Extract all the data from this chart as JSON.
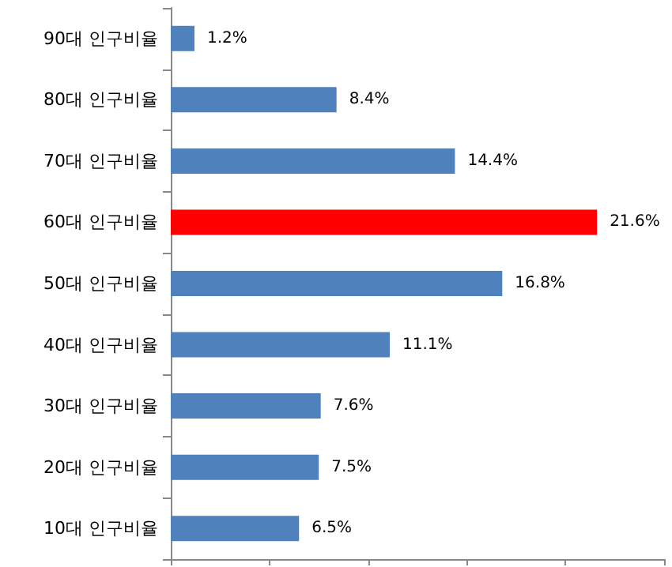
{
  "chart_data": {
    "type": "bar",
    "orientation": "horizontal",
    "categories": [
      "90대 인구비율",
      "80대 인구비율",
      "70대 인구비율",
      "60대 인구비율",
      "50대 인구비율",
      "40대 인구비율",
      "30대 인구비율",
      "20대 인구비율",
      "10대 인구비율"
    ],
    "values": [
      1.2,
      8.4,
      14.4,
      21.6,
      16.8,
      11.1,
      7.6,
      7.5,
      6.5
    ],
    "value_labels": [
      "1.2%",
      "8.4%",
      "14.4%",
      "21.6%",
      "16.8%",
      "11.1%",
      "7.6%",
      "7.5%",
      "6.5%"
    ],
    "colors": [
      "#4f81bd",
      "#4f81bd",
      "#4f81bd",
      "#ff0000",
      "#4f81bd",
      "#4f81bd",
      "#4f81bd",
      "#4f81bd",
      "#4f81bd"
    ],
    "tick_labels": "y",
    "grid": false
  }
}
